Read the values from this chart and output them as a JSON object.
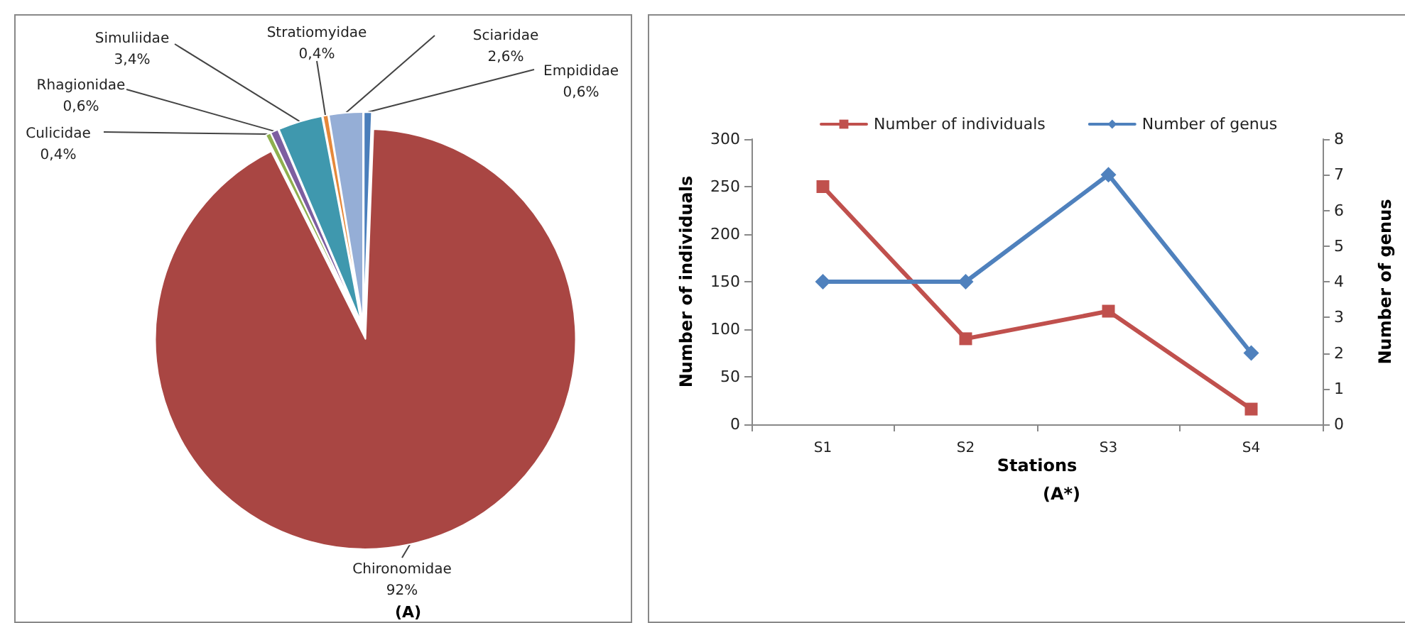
{
  "chart_data": [
    {
      "type": "pie",
      "title": "(A)",
      "categories": [
        "Empididae",
        "Chironomidae",
        "Culicidae",
        "Rhagionidae",
        "Simuliidae",
        "Stratiomyidae",
        "Sciaridae"
      ],
      "values": [
        0.6,
        92,
        0.4,
        0.6,
        3.4,
        0.4,
        2.6
      ],
      "value_labels": [
        "0,6%",
        "92%",
        "0,4%",
        "0,6%",
        "3,4%",
        "0,4%",
        "2,6%"
      ],
      "colors": [
        "#4a7ebb",
        "#a94643",
        "#8fb04f",
        "#7d5ea0",
        "#3f98ae",
        "#e5883a",
        "#95aed6"
      ],
      "legend": false
    },
    {
      "type": "line",
      "title": "(A*)",
      "xlabel": "Stations",
      "ylabel": "Number of individuals",
      "y2label": "Number of genus",
      "categories": [
        "S1",
        "S2",
        "S3",
        "S4"
      ],
      "series": [
        {
          "name": "Number of individuals",
          "color": "#c0504d",
          "marker": "square",
          "values": [
            250,
            90,
            119,
            16
          ]
        },
        {
          "name": "Number of genus",
          "color": "#4f81bd",
          "marker": "diamond",
          "axis": "y2",
          "values": [
            4,
            4,
            7,
            2
          ]
        }
      ],
      "ylim": [
        0,
        300
      ],
      "yticks": [
        0,
        50,
        100,
        150,
        200,
        250,
        300
      ],
      "y2lim": [
        0,
        8
      ],
      "y2ticks": [
        0,
        1,
        2,
        3,
        4,
        5,
        6,
        7,
        8
      ],
      "grid": false,
      "legend": "top",
      "line_style": "solid"
    }
  ]
}
